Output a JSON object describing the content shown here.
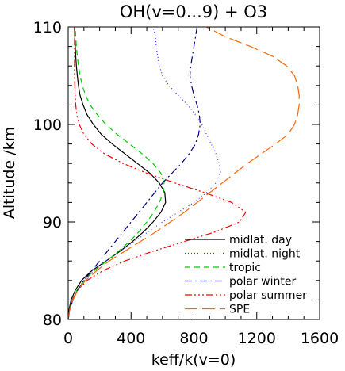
{
  "chart_data": {
    "type": "line",
    "title": "OH(v=0...9) + O3",
    "xlabel": "keff/k(v=0)",
    "ylabel": "Altitude /km",
    "xlim": [
      0,
      1600
    ],
    "ylim": [
      80,
      110
    ],
    "xticks": [
      "0",
      "400",
      "800",
      "1200",
      "1600"
    ],
    "yticks": [
      "80",
      "90",
      "100",
      "110"
    ],
    "x_tick_values": [
      0,
      400,
      800,
      1200,
      1600
    ],
    "y_tick_values": [
      80,
      90,
      100,
      110
    ],
    "x_minor_step": 100,
    "y_minor_step": 2,
    "grid": false,
    "legend_position": "bottom-right",
    "series": [
      {
        "name": "midlat. day",
        "color": "#000000",
        "dash": "solid",
        "points": [
          [
            0,
            80
          ],
          [
            5,
            81
          ],
          [
            18,
            82
          ],
          [
            45,
            83
          ],
          [
            85,
            84
          ],
          [
            150,
            85
          ],
          [
            240,
            86
          ],
          [
            330,
            87
          ],
          [
            410,
            88
          ],
          [
            480,
            89
          ],
          [
            540,
            90
          ],
          [
            590,
            91
          ],
          [
            620,
            92
          ],
          [
            615,
            93
          ],
          [
            580,
            94
          ],
          [
            520,
            95
          ],
          [
            440,
            96
          ],
          [
            360,
            97
          ],
          [
            280,
            98
          ],
          [
            210,
            99
          ],
          [
            160,
            100
          ],
          [
            120,
            101
          ],
          [
            95,
            102
          ],
          [
            75,
            103
          ],
          [
            65,
            104
          ],
          [
            58,
            105
          ],
          [
            52,
            106
          ],
          [
            48,
            107
          ],
          [
            45,
            108
          ],
          [
            42,
            109
          ],
          [
            40,
            110
          ]
        ]
      },
      {
        "name": "midlat. night",
        "color": "#3333ff",
        "dash": "1,3",
        "points": [
          [
            0,
            80
          ],
          [
            10,
            81
          ],
          [
            30,
            82
          ],
          [
            60,
            83
          ],
          [
            100,
            84
          ],
          [
            160,
            85
          ],
          [
            240,
            86
          ],
          [
            330,
            87
          ],
          [
            420,
            88
          ],
          [
            510,
            89
          ],
          [
            600,
            90
          ],
          [
            700,
            91
          ],
          [
            800,
            92
          ],
          [
            880,
            93
          ],
          [
            940,
            94
          ],
          [
            970,
            95
          ],
          [
            960,
            96
          ],
          [
            940,
            97
          ],
          [
            910,
            98
          ],
          [
            880,
            99
          ],
          [
            850,
            100
          ],
          [
            810,
            101
          ],
          [
            760,
            102
          ],
          [
            700,
            103
          ],
          [
            640,
            104
          ],
          [
            600,
            105
          ],
          [
            580,
            106
          ],
          [
            570,
            107
          ],
          [
            560,
            108
          ],
          [
            555,
            109
          ],
          [
            540,
            110
          ]
        ]
      },
      {
        "name": "tropic",
        "color": "#00cc00",
        "dash": "7,5",
        "points": [
          [
            0,
            80
          ],
          [
            8,
            81
          ],
          [
            25,
            82
          ],
          [
            55,
            83
          ],
          [
            100,
            84
          ],
          [
            165,
            85
          ],
          [
            245,
            86
          ],
          [
            320,
            87
          ],
          [
            390,
            88
          ],
          [
            450,
            89
          ],
          [
            500,
            90
          ],
          [
            545,
            91
          ],
          [
            580,
            92
          ],
          [
            605,
            93
          ],
          [
            610,
            94
          ],
          [
            590,
            95
          ],
          [
            540,
            96
          ],
          [
            470,
            97
          ],
          [
            390,
            98
          ],
          [
            310,
            99
          ],
          [
            240,
            100
          ],
          [
            185,
            101
          ],
          [
            140,
            102
          ],
          [
            110,
            103
          ],
          [
            90,
            104
          ],
          [
            75,
            105
          ],
          [
            65,
            106
          ],
          [
            58,
            107
          ],
          [
            52,
            108
          ],
          [
            48,
            109
          ],
          [
            45,
            110
          ]
        ]
      },
      {
        "name": "polar winter",
        "color": "#000080",
        "dash": "9,4,2,4",
        "points": [
          [
            0,
            80
          ],
          [
            10,
            81
          ],
          [
            30,
            82
          ],
          [
            60,
            83
          ],
          [
            100,
            84
          ],
          [
            150,
            85
          ],
          [
            200,
            86
          ],
          [
            250,
            87
          ],
          [
            300,
            88
          ],
          [
            350,
            89
          ],
          [
            400,
            90
          ],
          [
            450,
            91
          ],
          [
            500,
            92
          ],
          [
            550,
            93
          ],
          [
            600,
            94
          ],
          [
            660,
            95
          ],
          [
            720,
            96
          ],
          [
            770,
            97
          ],
          [
            810,
            98
          ],
          [
            830,
            99
          ],
          [
            840,
            100
          ],
          [
            835,
            101
          ],
          [
            820,
            102
          ],
          [
            800,
            103
          ],
          [
            785,
            104
          ],
          [
            775,
            105
          ],
          [
            780,
            106
          ],
          [
            790,
            107
          ],
          [
            800,
            108
          ],
          [
            810,
            109
          ],
          [
            820,
            110
          ]
        ]
      },
      {
        "name": "polar summer",
        "color": "#ff0000",
        "dash": "9,3,2,3,2,3,2,3",
        "points": [
          [
            0,
            80
          ],
          [
            8,
            81
          ],
          [
            25,
            82
          ],
          [
            60,
            83
          ],
          [
            120,
            84
          ],
          [
            220,
            85
          ],
          [
            360,
            86
          ],
          [
            540,
            87
          ],
          [
            740,
            88
          ],
          [
            940,
            89
          ],
          [
            1090,
            90
          ],
          [
            1130,
            91
          ],
          [
            1040,
            92
          ],
          [
            870,
            93
          ],
          [
            680,
            94
          ],
          [
            500,
            95
          ],
          [
            350,
            96
          ],
          [
            230,
            97
          ],
          [
            150,
            98
          ],
          [
            100,
            99
          ],
          [
            70,
            100
          ],
          [
            55,
            101
          ],
          [
            48,
            102
          ],
          [
            44,
            103
          ],
          [
            42,
            104
          ],
          [
            40,
            105
          ],
          [
            40,
            106
          ],
          [
            40,
            107
          ],
          [
            40,
            108
          ],
          [
            40,
            109
          ],
          [
            40,
            110
          ]
        ]
      },
      {
        "name": "SPE",
        "color": "#ff6600",
        "dash": "16,6",
        "points": [
          [
            0,
            80
          ],
          [
            10,
            81
          ],
          [
            30,
            82
          ],
          [
            60,
            83
          ],
          [
            110,
            84
          ],
          [
            180,
            85
          ],
          [
            260,
            86
          ],
          [
            360,
            87
          ],
          [
            460,
            88
          ],
          [
            560,
            89
          ],
          [
            650,
            90
          ],
          [
            740,
            91
          ],
          [
            820,
            92
          ],
          [
            900,
            93
          ],
          [
            980,
            94
          ],
          [
            1060,
            95
          ],
          [
            1140,
            96
          ],
          [
            1230,
            97
          ],
          [
            1320,
            98
          ],
          [
            1400,
            99
          ],
          [
            1440,
            100
          ],
          [
            1460,
            101
          ],
          [
            1470,
            102
          ],
          [
            1470,
            103
          ],
          [
            1460,
            104
          ],
          [
            1440,
            105
          ],
          [
            1390,
            106
          ],
          [
            1300,
            107
          ],
          [
            1160,
            108
          ],
          [
            1000,
            109
          ],
          [
            880,
            110
          ]
        ]
      }
    ]
  }
}
